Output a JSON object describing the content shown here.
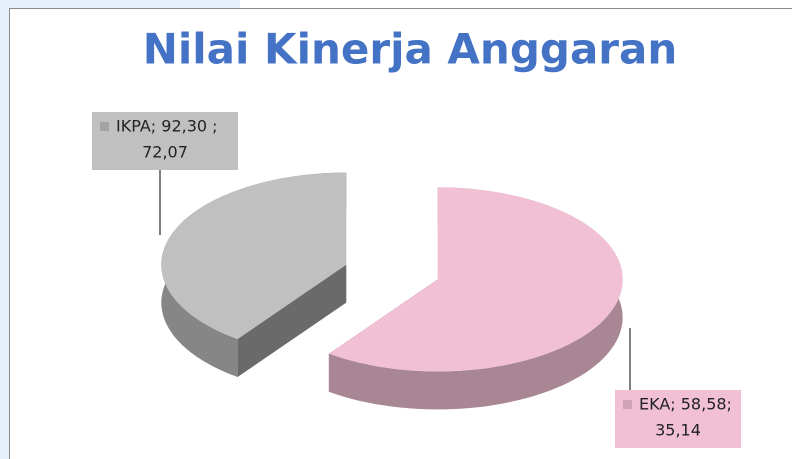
{
  "chart_data": {
    "type": "pie",
    "title": "Nilai Kinerja Anggaran",
    "categories": [
      "EKA",
      "IKPA"
    ],
    "values": [
      60,
      40
    ],
    "colors": [
      "#f2c0d4",
      "#c0c0c0"
    ],
    "data_labels": [
      [
        "EKA; 58,58;",
        "35,14"
      ],
      [
        "IKPA; 92,30 ;",
        "72,07"
      ]
    ]
  }
}
